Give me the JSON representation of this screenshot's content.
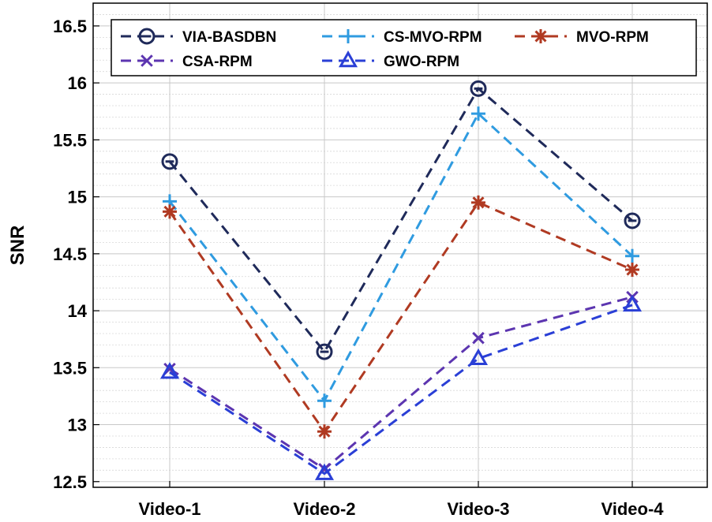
{
  "chart_data": {
    "type": "line",
    "categories": [
      "Video-1",
      "Video-2",
      "Video-3",
      "Video-4"
    ],
    "ylabel": "SNR",
    "xlabel": "",
    "ylim": [
      12.45,
      16.7
    ],
    "yticks": [
      "12.5",
      "13",
      "13.5",
      "14",
      "14.5",
      "15",
      "15.5",
      "16",
      "16.5"
    ],
    "grid": true,
    "minor_grid": true,
    "legend_position": "top",
    "series": [
      {
        "name": "VIA-BASDBN",
        "values": [
          15.31,
          13.64,
          15.95,
          14.79
        ],
        "color": "#1f2a5a",
        "marker": "circle-minus"
      },
      {
        "name": "CS-MVO-RPM",
        "values": [
          14.96,
          13.21,
          15.73,
          14.48
        ],
        "color": "#2f9be0",
        "marker": "plus"
      },
      {
        "name": "MVO-RPM",
        "values": [
          14.87,
          12.94,
          14.95,
          14.36
        ],
        "color": "#b03a22",
        "marker": "asterisk"
      },
      {
        "name": "CSA-RPM",
        "values": [
          13.49,
          12.61,
          13.76,
          14.12
        ],
        "color": "#5c35b0",
        "marker": "x"
      },
      {
        "name": "GWO-RPM",
        "values": [
          13.46,
          12.57,
          13.58,
          14.05
        ],
        "color": "#2a3fd6",
        "marker": "triangle"
      }
    ]
  }
}
